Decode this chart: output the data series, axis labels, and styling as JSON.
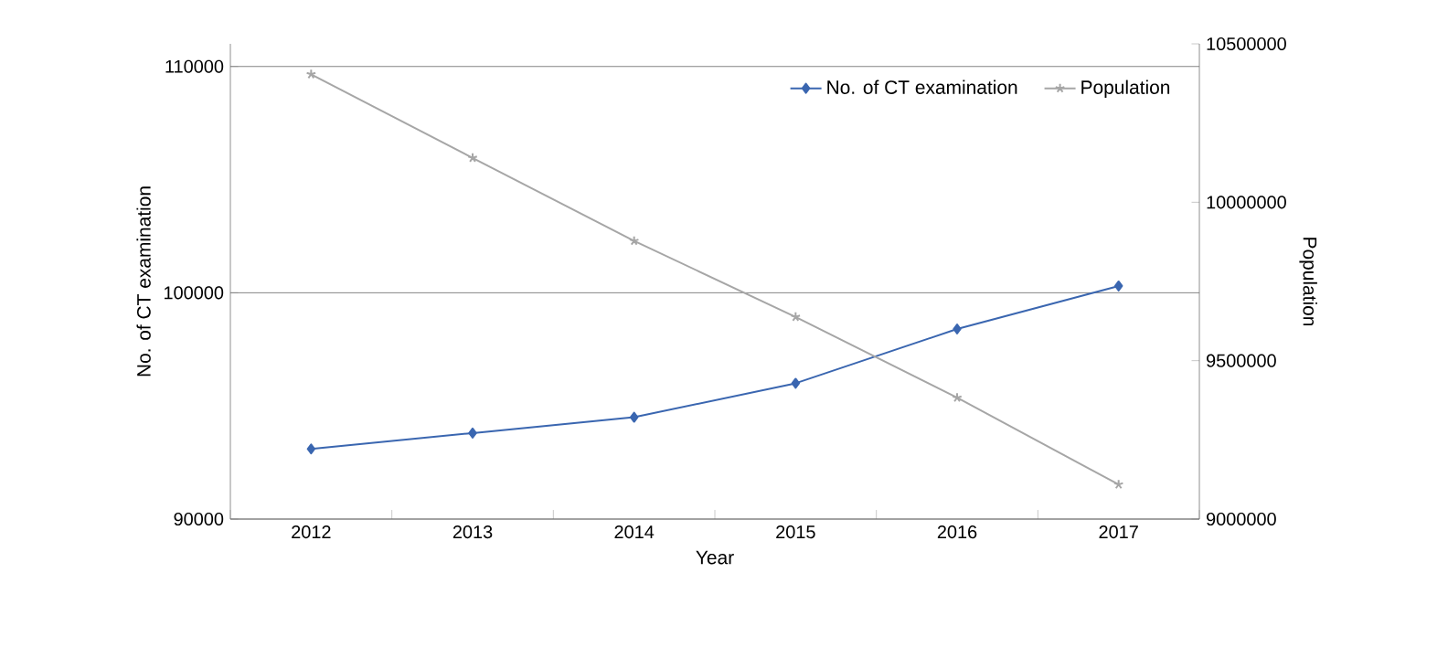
{
  "chart_data": {
    "type": "line",
    "xlabel": "Year",
    "ylabel": "No. of CT examination",
    "y2label": "Population",
    "categories": [
      "2012",
      "2013",
      "2014",
      "2015",
      "2016",
      "2017"
    ],
    "series": [
      {
        "name": "No. of CT examination",
        "color": "#3a66b0",
        "marker": "diamond",
        "values": [
          93100,
          93800,
          94500,
          96000,
          98400,
          100300
        ]
      },
      {
        "name": "Population",
        "color": "#a6a6a6",
        "marker": "cross",
        "axis": "y2",
        "values": [
          10404000,
          10140000,
          9878000,
          9638000,
          9383000,
          9109000
        ]
      }
    ],
    "ylim": [
      90000,
      111000
    ],
    "yticks": [
      90000,
      100000,
      110000
    ],
    "y2lim": [
      9000000,
      10500000
    ],
    "y2ticks": [
      9000000,
      9500000,
      10000000,
      10500000
    ],
    "grid": "y",
    "legend": "top right"
  }
}
